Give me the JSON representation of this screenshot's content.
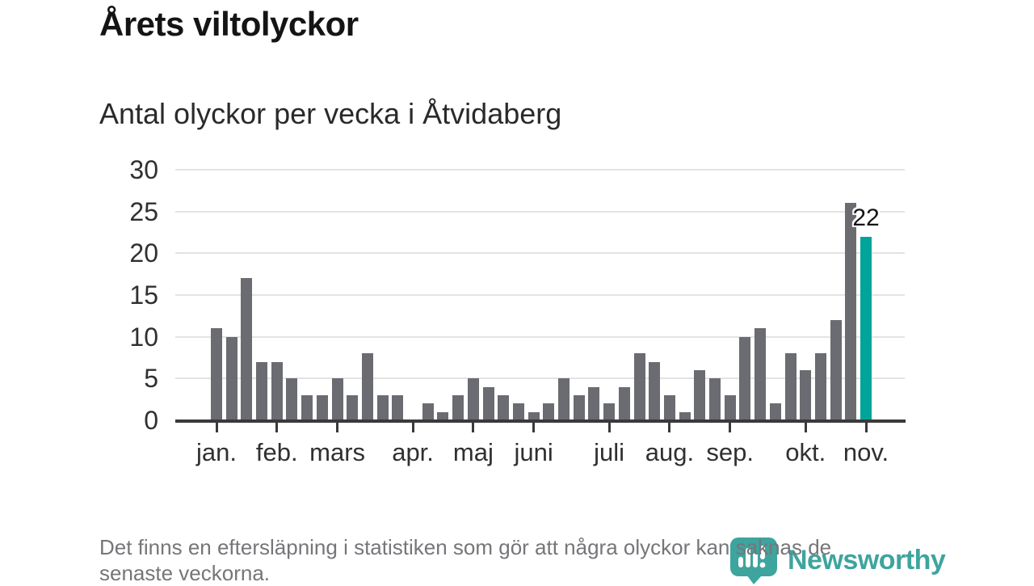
{
  "title": "Årets viltolyckor",
  "subtitle": "Antal olyckor per vecka i Åtvidaberg",
  "footer": {
    "line1": "Det finns en eftersläpning i statistiken som gör att några olyckor kan saknas de",
    "line2": "senaste veckorna."
  },
  "logo": {
    "name": "Newsworthy",
    "icon": "newsworthy-pin-barchart-icon"
  },
  "colors": {
    "bar": "#6b6b72",
    "highlight": "#00a49b",
    "grid": "#e3e3e3",
    "axis": "#3a3a3a",
    "axis_text": "#303030",
    "logo_teal": "#3ea49e"
  },
  "chart_data": {
    "type": "bar",
    "title": "Årets viltolyckor",
    "subtitle": "Antal olyckor per vecka i Åtvidaberg",
    "x_unit": "vecka (week of year)",
    "ylabel": "",
    "ylim": [
      0,
      30
    ],
    "y_ticks": [
      0,
      5,
      10,
      15,
      20,
      25,
      30
    ],
    "grid": true,
    "values": [
      11,
      10,
      17,
      7,
      7,
      5,
      3,
      3,
      5,
      3,
      8,
      3,
      3,
      0,
      2,
      1,
      3,
      5,
      4,
      3,
      2,
      1,
      2,
      5,
      3,
      4,
      2,
      4,
      8,
      7,
      3,
      1,
      6,
      5,
      3,
      10,
      11,
      2,
      8,
      6,
      8,
      12,
      26,
      22
    ],
    "highlight_index": 43,
    "highlight_value_label": "22",
    "months": [
      {
        "label": "jan.",
        "week_index": 0
      },
      {
        "label": "feb.",
        "week_index": 4
      },
      {
        "label": "mars",
        "week_index": 8
      },
      {
        "label": "apr.",
        "week_index": 13
      },
      {
        "label": "maj",
        "week_index": 17
      },
      {
        "label": "juni",
        "week_index": 21
      },
      {
        "label": "juli",
        "week_index": 26
      },
      {
        "label": "aug.",
        "week_index": 30
      },
      {
        "label": "sep.",
        "week_index": 34
      },
      {
        "label": "okt.",
        "week_index": 39
      },
      {
        "label": "nov.",
        "week_index": 43
      }
    ]
  }
}
